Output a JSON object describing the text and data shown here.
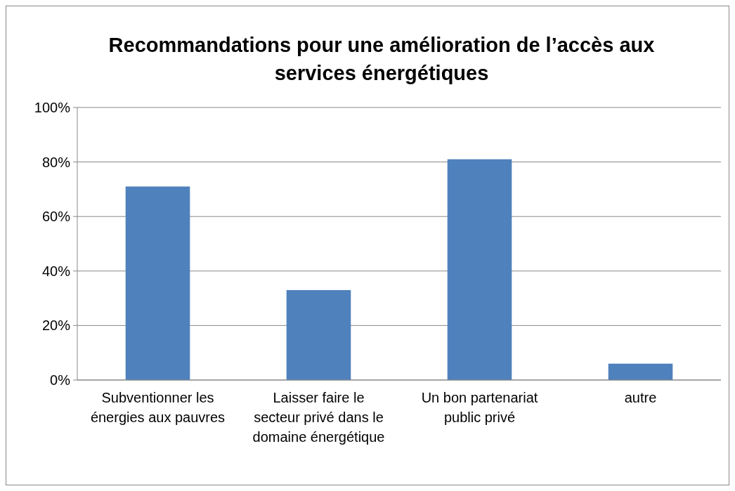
{
  "chart_data": {
    "type": "bar",
    "title": "Recommandations pour une amélioration de l’accès aux services énergétiques",
    "categories": [
      "Subventionner les énergies aux pauvres",
      "Laisser faire le secteur privé dans le domaine énergétique",
      "Un bon partenariat public privé",
      "autre"
    ],
    "values": [
      71,
      33,
      81,
      6
    ],
    "color": "#4f81bd",
    "ylim": [
      0,
      100
    ],
    "yticks": [
      {
        "value": 0,
        "label": "0%"
      },
      {
        "value": 20,
        "label": "20%"
      },
      {
        "value": 40,
        "label": "40%"
      },
      {
        "value": 60,
        "label": "60%"
      },
      {
        "value": 80,
        "label": "80%"
      },
      {
        "value": 100,
        "label": "100%"
      }
    ],
    "grid": "y"
  }
}
